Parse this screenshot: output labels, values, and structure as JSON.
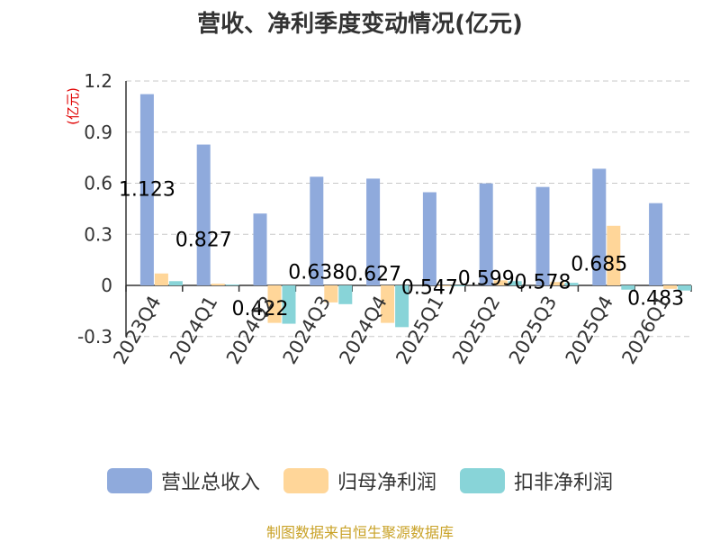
{
  "title": "营收、净利季度变动情况(亿元)",
  "source": "制图数据来自恒生聚源数据库",
  "chart_data": {
    "type": "bar",
    "title": "营收、净利季度变动情况(亿元)",
    "ylabel": "(亿元)",
    "ylim": [
      -0.3,
      1.2
    ],
    "yticks": [
      "1.2",
      "0.9",
      "0.6",
      "0.3",
      "0",
      "-0.3"
    ],
    "ytick_values": [
      1.2,
      0.9,
      0.6,
      0.3,
      0,
      -0.3
    ],
    "grid": true,
    "legend_position": "bottom",
    "categories": [
      "2023Q4",
      "2024Q1",
      "2024Q2",
      "2024Q3",
      "2024Q4",
      "2025Q1",
      "2025Q2",
      "2025Q3",
      "2025Q4",
      "2026Q1"
    ],
    "series": [
      {
        "name": "营业总收入",
        "color": "#8faadc",
        "values": [
          1.123,
          0.827,
          0.422,
          0.638,
          0.627,
          0.547,
          0.599,
          0.578,
          0.685,
          0.483
        ],
        "labels": [
          "1.123",
          "0.827",
          "0.422",
          "0.638",
          "0.627",
          "0.547",
          "0.599",
          "0.578",
          "0.685",
          "0.483"
        ]
      },
      {
        "name": "归母净利润",
        "color": "#ffd699",
        "values": [
          0.07,
          0.01,
          -0.22,
          -0.1,
          -0.22,
          0.0,
          0.03,
          0.02,
          0.35,
          -0.02
        ]
      },
      {
        "name": "扣非净利润",
        "color": "#88d4d8",
        "values": [
          0.025,
          0.005,
          -0.225,
          -0.11,
          -0.245,
          -0.005,
          0.025,
          0.015,
          -0.025,
          -0.03
        ]
      }
    ]
  }
}
